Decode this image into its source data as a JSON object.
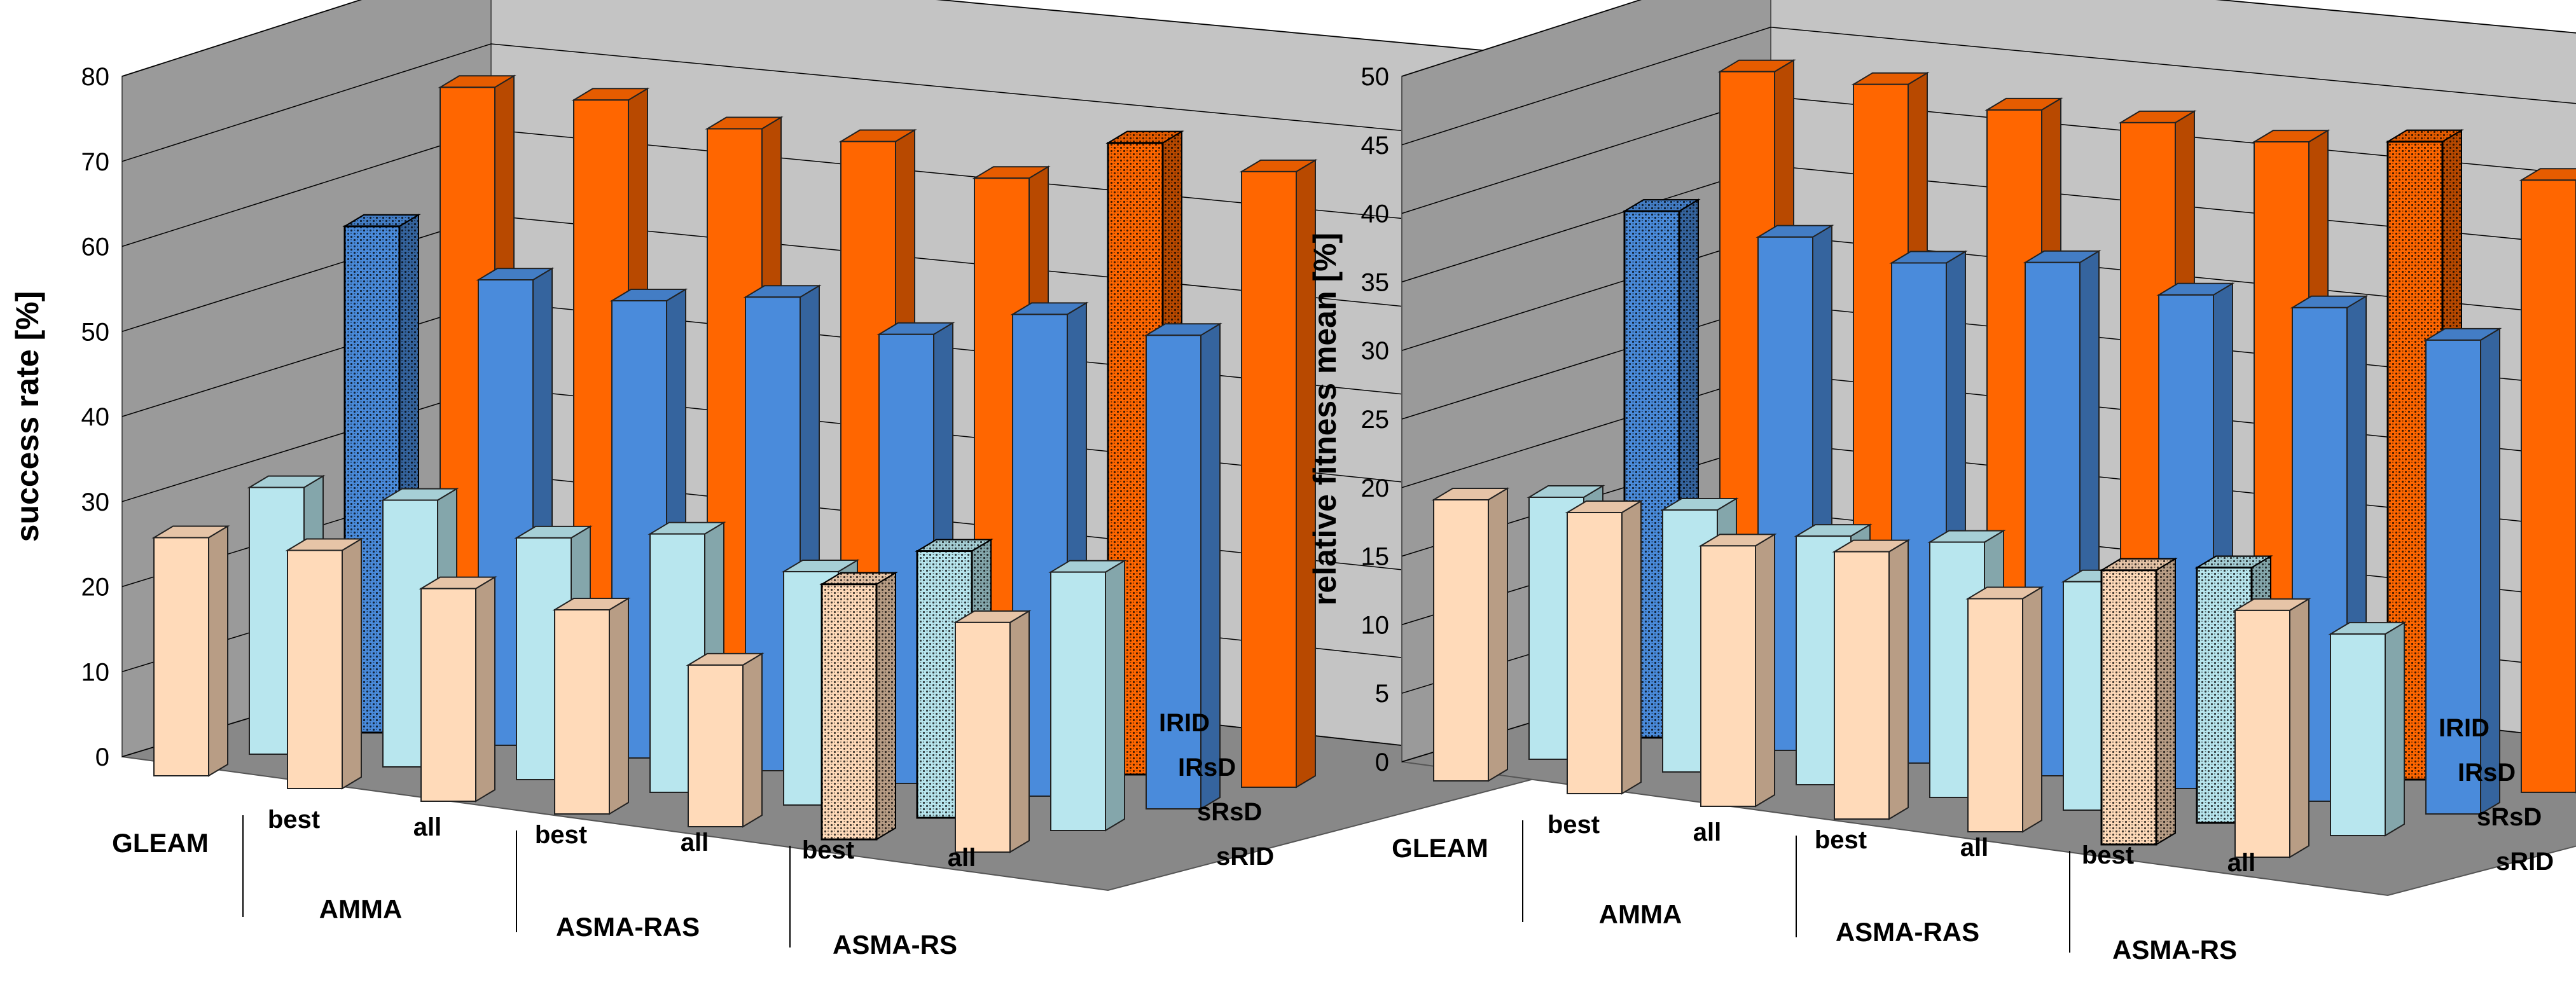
{
  "colors": {
    "sRID": "#FFDAB9",
    "sRsD": "#B8E6EE",
    "IRsD": "#4A8BDB",
    "IRID": "#FF6600",
    "floor": "#888888",
    "backwall": "#C4C4C4",
    "sidewall": "#9A9A9A"
  },
  "chart_data": [
    {
      "type": "bar3d",
      "ylabel": "success rate [%]",
      "ylim": [
        0,
        80
      ],
      "yticks": [
        0,
        10,
        20,
        30,
        40,
        50,
        60,
        70,
        80
      ],
      "categories": [
        "GLEAM",
        "AMMA best",
        "AMMA all",
        "ASMA-RAS best",
        "ASMA-RAS all",
        "ASMA-RS best",
        "ASMA-RS all"
      ],
      "category_labels": [
        {
          "level1": "GLEAM",
          "level2": ""
        },
        {
          "level1": "best",
          "level2": "AMMA"
        },
        {
          "level1": "all",
          "level2": ""
        },
        {
          "level1": "best",
          "level2": "ASMA-RAS"
        },
        {
          "level1": "all",
          "level2": ""
        },
        {
          "level1": "best",
          "level2": "ASMA-RS"
        },
        {
          "level1": "all",
          "level2": ""
        }
      ],
      "group_labels": [
        "AMMA",
        "ASMA-RAS",
        "ASMA-RS"
      ],
      "series": [
        {
          "name": "sRID",
          "values": [
            28,
            28,
            25,
            24,
            19,
            30,
            27
          ],
          "highlight": 5
        },
        {
          "name": "sRsD",
          "values": [
            32,
            32,
            29,
            31,
            28,
            32,
            31
          ],
          "highlight": 5
        },
        {
          "name": "IRsD",
          "values": [
            62,
            57,
            56,
            58,
            55,
            59,
            58
          ],
          "highlight": 0
        },
        {
          "name": "IRID",
          "values": [
            78,
            78,
            76,
            76,
            73,
            79,
            77
          ],
          "highlight": 5
        }
      ],
      "series_axis_labels": [
        "IRID",
        "IRsD",
        "sRsD",
        "sRID"
      ],
      "highlighted": [
        [
          "sRID",
          "ASMA-RS best"
        ],
        [
          "sRsD",
          "ASMA-RS best"
        ],
        [
          "IRsD",
          "GLEAM"
        ],
        [
          "IRID",
          "ASMA-RS best"
        ]
      ]
    },
    {
      "type": "bar3d",
      "ylabel": "relative fitness mean [%]",
      "ylim": [
        0,
        50
      ],
      "yticks": [
        0,
        5,
        10,
        15,
        20,
        25,
        30,
        35,
        40,
        45,
        50
      ],
      "categories": [
        "GLEAM",
        "AMMA best",
        "AMMA all",
        "ASMA-RAS best",
        "ASMA-RAS all",
        "ASMA-RS best",
        "ASMA-RS all"
      ],
      "category_labels": [
        {
          "level1": "GLEAM",
          "level2": ""
        },
        {
          "level1": "best",
          "level2": "AMMA"
        },
        {
          "level1": "all",
          "level2": ""
        },
        {
          "level1": "best",
          "level2": "ASMA-RAS"
        },
        {
          "level1": "all",
          "level2": ""
        },
        {
          "level1": "best",
          "level2": "ASMA-RS"
        },
        {
          "level1": "all",
          "level2": ""
        }
      ],
      "group_labels": [
        "AMMA",
        "ASMA-RAS",
        "ASMA-RS"
      ],
      "series": [
        {
          "name": "sRID",
          "values": [
            20.5,
            20.5,
            19,
            19.5,
            17,
            20,
            18
          ],
          "highlight": 5
        },
        {
          "name": "sRsD",
          "values": [
            19.5,
            19.5,
            18.5,
            19,
            17,
            19,
            15
          ],
          "highlight": 5
        },
        {
          "name": "IRsD",
          "values": [
            40,
            39,
            38,
            39,
            37.5,
            37.5,
            36
          ],
          "highlight": 0
        },
        {
          "name": "IRID",
          "values": [
            50,
            50,
            49,
            49,
            48.5,
            49.5,
            47.5
          ],
          "highlight": 5
        }
      ],
      "series_axis_labels": [
        "IRID",
        "IRsD",
        "sRsD",
        "sRID"
      ],
      "highlighted": [
        [
          "sRID",
          "ASMA-RS best"
        ],
        [
          "sRsD",
          "ASMA-RS best"
        ],
        [
          "IRsD",
          "GLEAM"
        ],
        [
          "IRID",
          "ASMA-RS best"
        ]
      ]
    }
  ]
}
